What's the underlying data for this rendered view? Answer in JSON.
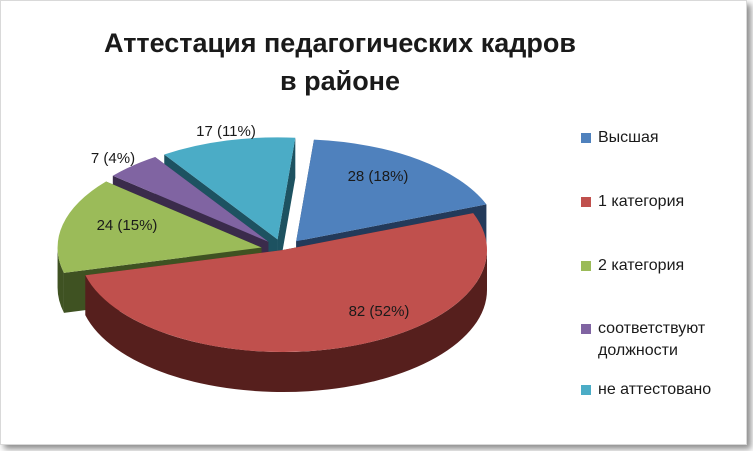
{
  "title_line1": "Аттестация педагогических кадров",
  "title_line2": "в районе",
  "chart_data": {
    "type": "pie",
    "title": "Аттестация педагогических кадров в районе",
    "legend_position": "right",
    "slices": [
      {
        "label": "Высшая",
        "value": 28,
        "data_label": "28 (18%)",
        "color": "#4f81bd",
        "dark": "#233a5a"
      },
      {
        "label": "1 категория",
        "value": 82,
        "data_label": "82 (52%)",
        "color": "#c0504d",
        "dark": "#561f1d"
      },
      {
        "label": "2 категория",
        "value": 24,
        "data_label": "24 (15%)",
        "color": "#9bbb59",
        "dark": "#3f5222"
      },
      {
        "label": "соответствуют должности",
        "value": 7,
        "data_label": "7 (4%)",
        "color": "#8064a2",
        "dark": "#3a2b4b"
      },
      {
        "label": "не аттестовано",
        "value": 17,
        "data_label": "17 (11%)",
        "color": "#4bacc6",
        "dark": "#1d5261"
      }
    ]
  },
  "legend": [
    {
      "line1": "Высшая",
      "line2": ""
    },
    {
      "line1": "1 категория",
      "line2": ""
    },
    {
      "line1": "2 категория",
      "line2": ""
    },
    {
      "line1": "соответствуют",
      "line2": "должности"
    },
    {
      "line1": "не аттестовано",
      "line2": ""
    }
  ]
}
